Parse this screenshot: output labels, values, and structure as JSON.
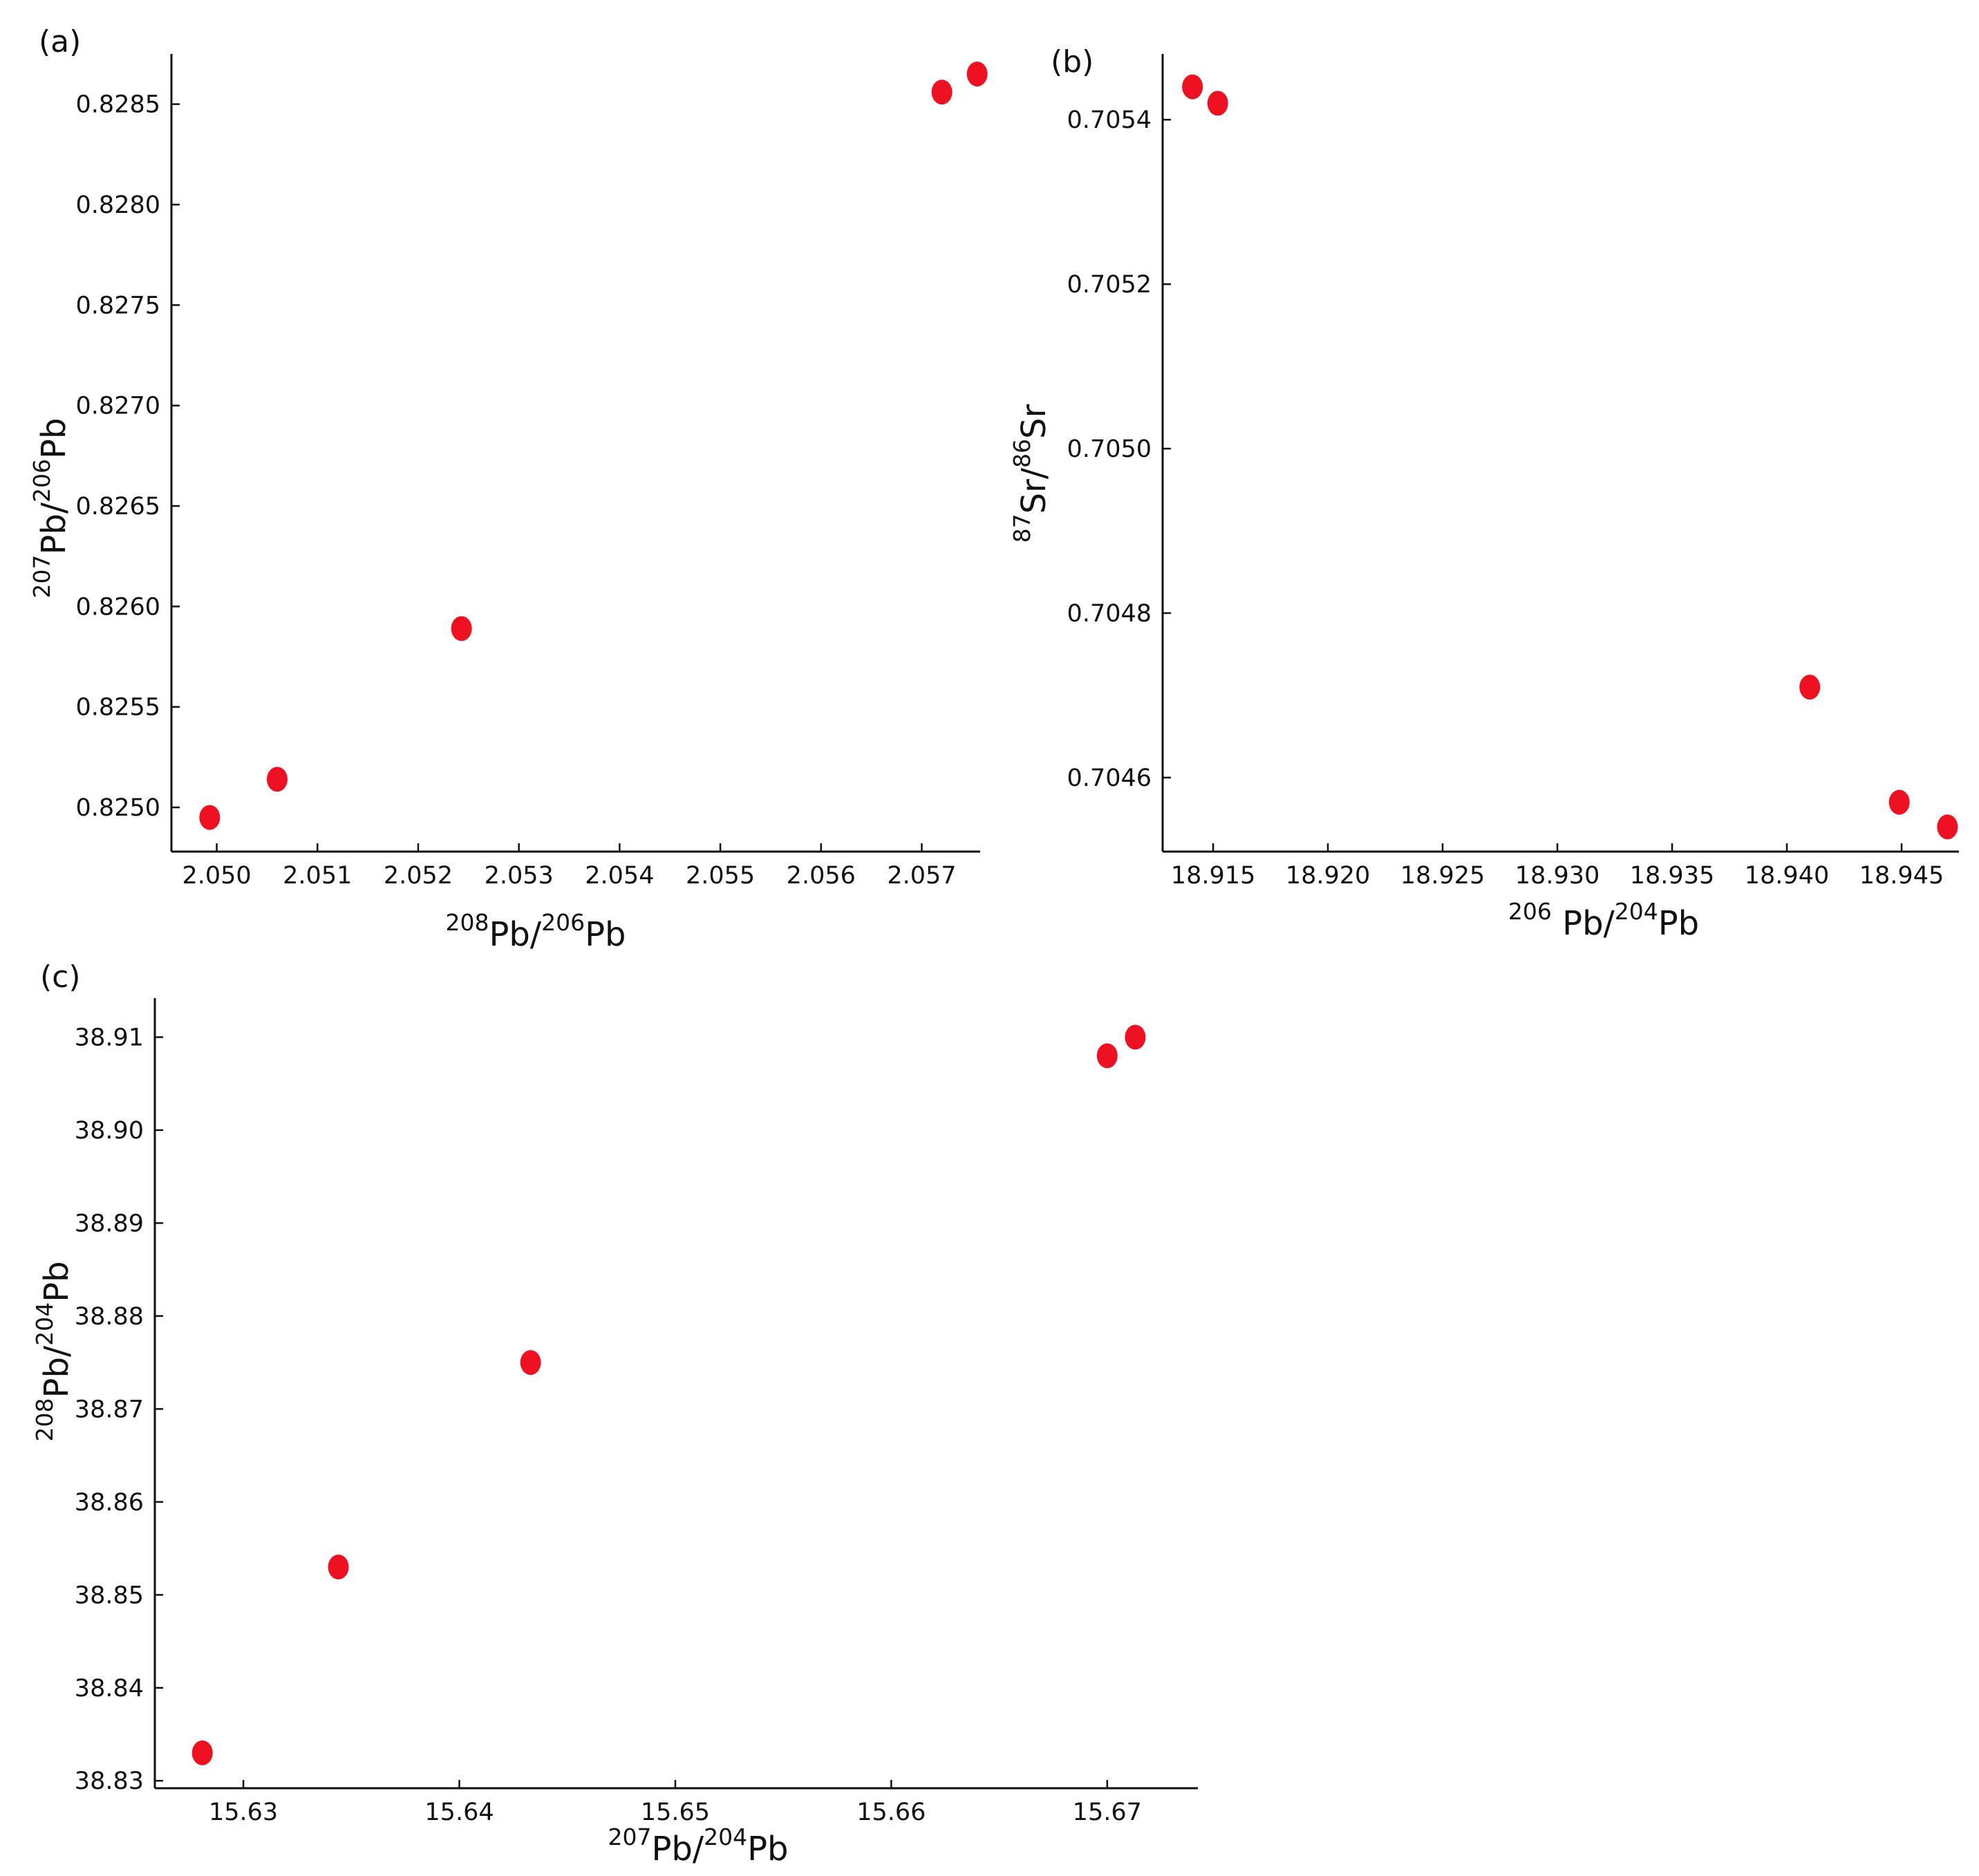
{
  "chart_data": [
    {
      "type": "scatter",
      "panel_label": "(a)",
      "xlabel": {
        "iso1": "208",
        "el1": "Pb/",
        "iso2": "206",
        "el2": "Pb"
      },
      "ylabel": {
        "iso1": "207",
        "el1": "Pb/",
        "iso2": "206",
        "el2": "Pb"
      },
      "xlim": [
        2.04955,
        2.05758
      ],
      "ylim": [
        0.82478,
        0.82875
      ],
      "xticks": [
        "2.050",
        "2.051",
        "2.052",
        "2.053",
        "2.054",
        "2.055",
        "2.056",
        "2.057"
      ],
      "yticks": [
        "0.8250",
        "0.8255",
        "0.8260",
        "0.8265",
        "0.8270",
        "0.8275",
        "0.8280",
        "0.8285"
      ],
      "marker_color": "#ee1122",
      "points": [
        {
          "x": 2.04993,
          "y": 0.82495
        },
        {
          "x": 2.0506,
          "y": 0.82514
        },
        {
          "x": 2.05243,
          "y": 0.82589
        },
        {
          "x": 2.0572,
          "y": 0.82856
        },
        {
          "x": 2.05755,
          "y": 0.82865
        }
      ]
    },
    {
      "type": "scatter",
      "panel_label": "(b)",
      "xlabel": {
        "iso1": "206",
        "el1": " Pb/",
        "iso2": "204",
        "el2": "Pb"
      },
      "ylabel": {
        "iso1": "87",
        "el1": "Sr/",
        "iso2": "86",
        "el2": "Sr"
      },
      "xlim": [
        18.9128,
        18.9475
      ],
      "ylim": [
        0.70451,
        0.70548
      ],
      "xticks": [
        "18.915",
        "18.920",
        "18.925",
        "18.930",
        "18.935",
        "18.940",
        "18.945"
      ],
      "yticks": [
        "0.7046",
        "0.7048",
        "0.7050",
        "0.7052",
        "0.7054"
      ],
      "marker_color": "#ee1122",
      "points": [
        {
          "x": 18.9141,
          "y": 0.70544
        },
        {
          "x": 18.9152,
          "y": 0.70542
        },
        {
          "x": 18.941,
          "y": 0.70471
        },
        {
          "x": 18.9449,
          "y": 0.70457
        },
        {
          "x": 18.947,
          "y": 0.70454
        }
      ]
    },
    {
      "type": "scatter",
      "panel_label": "(c)",
      "xlabel": {
        "iso1": "207",
        "el1": "Pb/",
        "iso2": "204",
        "el2": "Pb"
      },
      "ylabel": {
        "iso1": "208",
        "el1": "Pb/",
        "iso2": "204",
        "el2": "Pb"
      },
      "xlim": [
        15.6259,
        15.6742
      ],
      "ylim": [
        38.8292,
        38.9142
      ],
      "xticks": [
        "15.63",
        "15.64",
        "15.65",
        "15.66",
        "15.67"
      ],
      "yticks": [
        "38.83",
        "38.84",
        "38.85",
        "38.86",
        "38.87",
        "38.88",
        "38.89",
        "38.90",
        "38.91"
      ],
      "marker_color": "#ee1122",
      "points": [
        {
          "x": 15.6281,
          "y": 38.833
        },
        {
          "x": 15.6344,
          "y": 38.853
        },
        {
          "x": 15.6433,
          "y": 38.875
        },
        {
          "x": 15.67,
          "y": 38.908
        },
        {
          "x": 15.6713,
          "y": 38.91
        }
      ]
    }
  ]
}
